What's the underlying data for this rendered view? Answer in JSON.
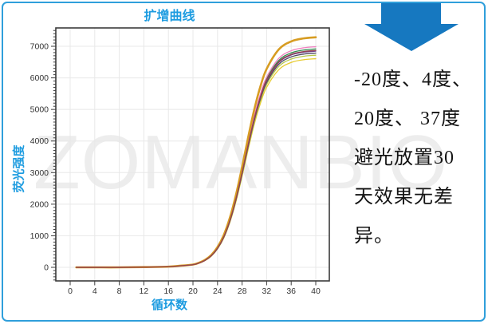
{
  "watermark": {
    "text": "ZOMANBIO"
  },
  "colors": {
    "frame": "#2f9fdb",
    "arrow": "#1678c0",
    "accent_text": "#1e9ce0",
    "axis": "#3b3b3b",
    "tick_text": "#333333",
    "grid": "#e8e8e8",
    "watermark": "#ededed",
    "note_text": "#141414"
  },
  "note": {
    "text": "-20度、4度、20度、37度避光放置30天效果无差异。",
    "lines": [
      "-20度、4度、",
      "20度、 37度",
      "避光放置30",
      "天效果无差",
      "异。"
    ]
  },
  "chart_data": {
    "type": "line",
    "title": "扩增曲线",
    "xlabel": "循环数",
    "ylabel": "荧光强度",
    "legend": "none",
    "grid": true,
    "xlim": [
      -2.3,
      42.2
    ],
    "ylim": [
      -450,
      7580
    ],
    "x_ticks": [
      0,
      4,
      8,
      12,
      16,
      20,
      24,
      28,
      32,
      36,
      40
    ],
    "y_ticks": [
      0,
      1000,
      2000,
      3000,
      4000,
      5000,
      6000,
      7000
    ],
    "y_minor_step": 100,
    "x": [
      1,
      4,
      8,
      12,
      16,
      18,
      20,
      21,
      22,
      23,
      24,
      25,
      26,
      27,
      28,
      29,
      30,
      31,
      32,
      34,
      36,
      38,
      40
    ],
    "series": [
      {
        "name": "curve-yellow",
        "color": "#e7cb2f",
        "width": 1.3,
        "values": [
          0,
          0,
          0,
          7,
          20,
          46,
          79,
          132,
          218,
          357,
          583,
          920,
          1417,
          2079,
          2880,
          3740,
          4541,
          5203,
          5700,
          6263,
          6488,
          6574,
          6607
        ]
      },
      {
        "name": "curve-yellow-green",
        "color": "#b5c84a",
        "width": 1.3,
        "values": [
          0,
          0,
          0,
          7,
          20,
          47,
          81,
          135,
          222,
          363,
          592,
          935,
          1440,
          2113,
          2928,
          3802,
          4617,
          5290,
          5795,
          6367,
          6595,
          6683,
          6717
        ]
      },
      {
        "name": "curve-slate",
        "color": "#4a4660",
        "width": 1.3,
        "values": [
          0,
          0,
          0,
          7,
          20,
          48,
          82,
          136,
          224,
          367,
          598,
          945,
          1455,
          2135,
          2958,
          3842,
          4665,
          5345,
          5855,
          6433,
          6664,
          6752,
          6786
        ]
      },
      {
        "name": "curve-purple",
        "color": "#6f449c",
        "width": 1.3,
        "values": [
          0,
          0,
          0,
          7,
          21,
          48,
          82,
          137,
          226,
          370,
          604,
          954,
          1468,
          2154,
          2984,
          3876,
          4706,
          5392,
          5906,
          6490,
          6723,
          6812,
          6846
        ]
      },
      {
        "name": "curve-green",
        "color": "#2f8b50",
        "width": 1.3,
        "values": [
          0,
          0,
          0,
          7,
          21,
          49,
          83,
          139,
          229,
          374,
          610,
          963,
          1483,
          2176,
          3015,
          3915,
          4754,
          5447,
          5967,
          6556,
          6791,
          6881,
          6916
        ]
      },
      {
        "name": "curve-pink",
        "color": "#f07fc0",
        "width": 1.3,
        "values": [
          0,
          0,
          0,
          7,
          21,
          49,
          84,
          140,
          231,
          378,
          616,
          973,
          1498,
          2198,
          3045,
          3955,
          4802,
          5502,
          6027,
          6622,
          6860,
          6951,
          6986
        ]
      },
      {
        "name": "curve-orange",
        "color": "#d79c22",
        "width": 2.6,
        "values": [
          0,
          0,
          0,
          7,
          22,
          51,
          88,
          146,
          241,
          394,
          642,
          1015,
          1562,
          2292,
          3176,
          4125,
          5008,
          5738,
          6285,
          6906,
          7154,
          7249,
          7285
        ]
      },
      {
        "name": "curve-maroon",
        "color": "#93424e",
        "width": 1.4,
        "values": [
          0,
          0,
          0,
          7,
          21,
          48,
          83,
          138,
          227,
          372,
          605,
          956,
          1472,
          2160,
          2993,
          3887,
          4720,
          5408,
          5924,
          6508,
          6742,
          6832,
          6866
        ]
      }
    ]
  }
}
